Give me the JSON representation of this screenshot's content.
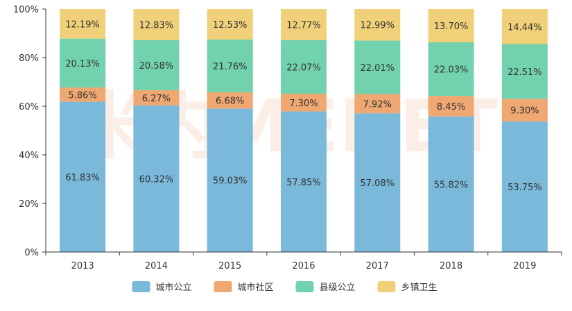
{
  "chart_data": {
    "type": "bar",
    "stacked": true,
    "percent": true,
    "categories": [
      "2013",
      "2014",
      "2015",
      "2016",
      "2017",
      "2018",
      "2019"
    ],
    "series": [
      {
        "name": "城市公立",
        "color": "#7ab9da",
        "values": [
          61.83,
          60.32,
          59.03,
          57.85,
          57.08,
          55.82,
          53.75
        ],
        "labels": [
          "61.83%",
          "60.32%",
          "59.03%",
          "57.85%",
          "57.08%",
          "55.82%",
          "53.75%"
        ]
      },
      {
        "name": "城市社区",
        "color": "#f0a872",
        "values": [
          5.86,
          6.27,
          6.68,
          7.3,
          7.92,
          8.45,
          9.3
        ],
        "labels": [
          "5.86%",
          "6.27%",
          "6.68%",
          "7.30%",
          "7.92%",
          "8.45%",
          "9.30%"
        ]
      },
      {
        "name": "县级公立",
        "color": "#72d2ae",
        "values": [
          20.13,
          20.58,
          21.76,
          22.07,
          22.01,
          22.03,
          22.51
        ],
        "labels": [
          "20.13%",
          "20.58%",
          "21.76%",
          "22.07%",
          "22.01%",
          "22.03%",
          "22.51%"
        ]
      },
      {
        "name": "乡镇卫生",
        "color": "#f0d078",
        "values": [
          12.19,
          12.83,
          12.53,
          12.77,
          12.99,
          13.7,
          14.44
        ],
        "labels": [
          "12.19%",
          "12.83%",
          "12.53%",
          "12.77%",
          "12.99%",
          "13.70%",
          "14.44%"
        ]
      }
    ],
    "yticks": [
      "0%",
      "20%",
      "40%",
      "60%",
      "80%",
      "100%"
    ],
    "ylim": [
      0,
      100
    ],
    "legend_position": "bottom-center",
    "watermark": "米内MENET"
  }
}
